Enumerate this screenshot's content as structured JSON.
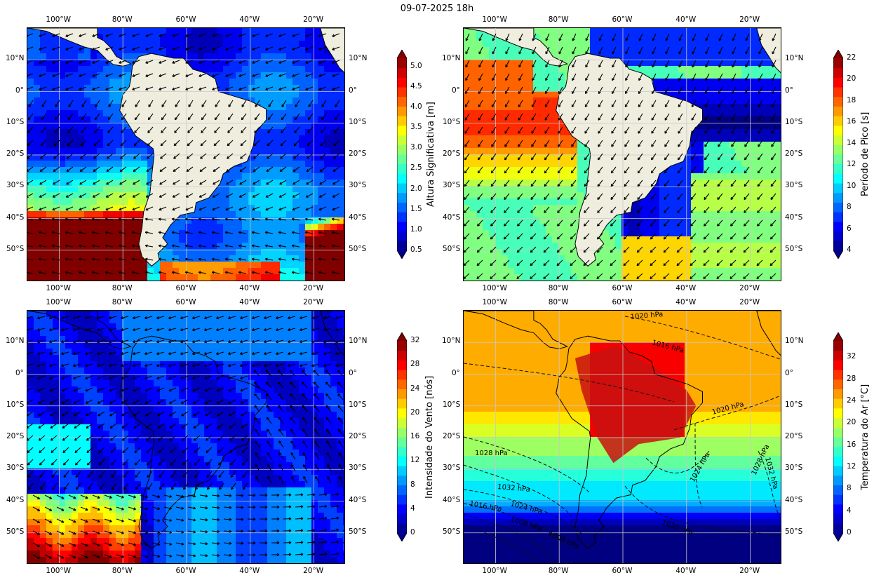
{
  "title": "09-07-2025 18h",
  "lon_ticks": [
    "100°W",
    "80°W",
    "60°W",
    "40°W",
    "20°W"
  ],
  "lat_ticks": [
    "10°N",
    "0°",
    "10°S",
    "20°S",
    "30°S",
    "40°S",
    "50°S"
  ],
  "panels": [
    {
      "id": "wave-height",
      "colorbar_label": "Altura Significativa [m]",
      "colorbar_ticks": [
        "0.5",
        "1.0",
        "1.5",
        "2.0",
        "2.5",
        "3.0",
        "3.5",
        "4.0",
        "4.5",
        "5.0"
      ],
      "colorbar_range": [
        0.5,
        5.2
      ]
    },
    {
      "id": "peak-period",
      "colorbar_label": "Período de Pico [s]",
      "colorbar_ticks": [
        "4",
        "6",
        "8",
        "10",
        "12",
        "14",
        "16",
        "18",
        "20",
        "22"
      ],
      "colorbar_range": [
        4,
        22
      ]
    },
    {
      "id": "wind-speed",
      "colorbar_label": "Intensidade do Vento [nós]",
      "colorbar_ticks": [
        "0",
        "4",
        "8",
        "12",
        "16",
        "20",
        "24",
        "28",
        "32"
      ],
      "colorbar_range": [
        0,
        32
      ]
    },
    {
      "id": "air-temperature",
      "colorbar_label": "Temperatura do Ar [°C]",
      "colorbar_ticks": [
        "0",
        "4",
        "8",
        "12",
        "16",
        "20",
        "24",
        "28",
        "32"
      ],
      "colorbar_range": [
        0,
        35
      ],
      "isobar_labels": [
        "1020 hPa",
        "1016 hPa",
        "1020 hPa",
        "1028 hPa",
        "1032 hPa",
        "1024 hPa",
        "1028 hPa",
        "1032 hPa",
        "1016 hPa",
        "1024 hPa",
        "1008 hPa",
        "1000 hPa",
        "1020 hPa"
      ]
    }
  ],
  "colors": {
    "land": "#efedde",
    "ocean_low": "#0a2ad8",
    "high": "#8b0000"
  }
}
